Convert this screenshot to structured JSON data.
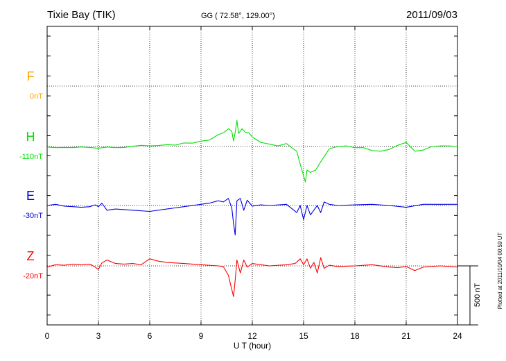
{
  "header": {
    "station": "Tixie Bay (TIK)",
    "coords": "GG ( 72.58°, 129.00°)",
    "date": "2011/09/03"
  },
  "plotted_note": "Plotted at 2011/10/04 00:59 UT",
  "scale_bar_label": "500 nT",
  "chart_data": {
    "type": "line",
    "xlabel": "U T (hour)",
    "xlim": [
      0,
      24
    ],
    "xticks": [
      0,
      3,
      6,
      9,
      12,
      15,
      18,
      21,
      24
    ],
    "xtick_labels": [
      "0",
      "3",
      "6",
      "9",
      "12",
      "15",
      "18",
      "21",
      "24"
    ],
    "grid": true,
    "scale_nT_per_division": 500,
    "series": [
      {
        "name": "F",
        "baseline_label": "0nT",
        "color": "#FFA500",
        "x": [],
        "y": []
      },
      {
        "name": "H",
        "baseline_label": "-110nT",
        "color": "#00E000",
        "x": [
          0,
          0.5,
          1,
          1.5,
          2,
          2.5,
          3,
          3.5,
          4,
          4.5,
          5,
          5.5,
          6,
          6.5,
          7,
          7.5,
          8,
          8.5,
          9,
          9.5,
          10,
          10.3,
          10.6,
          10.8,
          10.9,
          11.0,
          11.1,
          11.2,
          11.4,
          11.6,
          11.8,
          12,
          12.5,
          13,
          13.5,
          14,
          14.3,
          14.6,
          14.8,
          15.0,
          15.1,
          15.2,
          15.4,
          15.7,
          16,
          16.5,
          17,
          17.5,
          18,
          18.5,
          19,
          19.5,
          20,
          20.5,
          21,
          21.5,
          22,
          22.5,
          23,
          23.5,
          24
        ],
        "y": [
          -5,
          -10,
          -8,
          -10,
          -4,
          -8,
          -15,
          -5,
          -10,
          -8,
          2,
          10,
          5,
          8,
          15,
          12,
          30,
          28,
          45,
          55,
          100,
          115,
          150,
          130,
          45,
          120,
          220,
          110,
          150,
          120,
          115,
          80,
          35,
          20,
          5,
          25,
          -10,
          -40,
          -150,
          -250,
          -300,
          -200,
          -220,
          -200,
          -130,
          -20,
          0,
          5,
          -10,
          -10,
          -35,
          -40,
          -25,
          10,
          35,
          -40,
          -30,
          0,
          5,
          5,
          0
        ]
      },
      {
        "name": "E",
        "baseline_label": "-30nT",
        "color": "#0000E0",
        "x": [
          0,
          0.5,
          1,
          1.5,
          2,
          2.5,
          2.8,
          3.0,
          3.2,
          3.5,
          4,
          5,
          6,
          7,
          8,
          9,
          9.5,
          10,
          10.3,
          10.6,
          10.8,
          10.9,
          11.0,
          11.1,
          11.3,
          11.5,
          11.7,
          12,
          12.5,
          13,
          14,
          14.6,
          14.8,
          15.0,
          15.2,
          15.4,
          15.6,
          15.8,
          16.0,
          16.2,
          16.5,
          17,
          18,
          19,
          20,
          21,
          22,
          23,
          24
        ],
        "y": [
          0,
          10,
          -5,
          -10,
          -15,
          -10,
          5,
          -10,
          20,
          -40,
          -30,
          -40,
          -50,
          -30,
          -10,
          10,
          20,
          40,
          30,
          60,
          -20,
          -150,
          -250,
          40,
          60,
          -40,
          45,
          -5,
          5,
          0,
          10,
          -60,
          0,
          -120,
          0,
          -80,
          -40,
          0,
          -60,
          30,
          10,
          0,
          5,
          10,
          0,
          -15,
          10,
          10,
          10
        ]
      },
      {
        "name": "Z",
        "baseline_label": "-20nT",
        "color": "#FF0000",
        "x": [
          0,
          0.5,
          1,
          1.5,
          2,
          2.5,
          2.8,
          3.0,
          3.2,
          3.5,
          4,
          4.5,
          5,
          5.5,
          6,
          6.5,
          7,
          8,
          9,
          10,
          10.3,
          10.6,
          10.8,
          10.9,
          11.0,
          11.1,
          11.3,
          11.5,
          11.7,
          12,
          12.5,
          13,
          14,
          14.5,
          14.8,
          15.0,
          15.2,
          15.4,
          15.6,
          15.8,
          16.0,
          16.2,
          16.5,
          17,
          18,
          19,
          20,
          20.5,
          21,
          21.5,
          22,
          23,
          24
        ],
        "y": [
          -10,
          10,
          5,
          15,
          10,
          15,
          -10,
          -30,
          25,
          50,
          20,
          15,
          20,
          10,
          60,
          40,
          30,
          20,
          10,
          0,
          -5,
          -80,
          -200,
          -260,
          -120,
          50,
          -60,
          50,
          -10,
          20,
          10,
          0,
          10,
          20,
          60,
          10,
          60,
          -20,
          30,
          -60,
          70,
          -20,
          5,
          -5,
          0,
          10,
          -10,
          -15,
          -5,
          -40,
          -10,
          0,
          -10
        ]
      }
    ]
  }
}
